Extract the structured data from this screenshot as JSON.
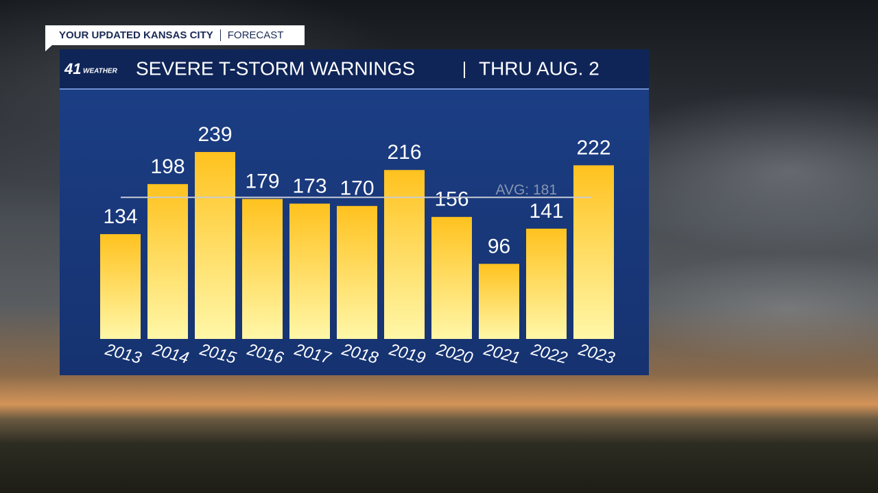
{
  "header": {
    "tag": "YOUR UPDATED KANSAS CITY",
    "section": "FORECAST"
  },
  "chart_data": {
    "type": "bar",
    "logo": {
      "number": "41",
      "word": "WEATHER"
    },
    "title": "SEVERE T-STORM WARNINGS",
    "subtitle": "THRU AUG. 2",
    "categories": [
      "2013",
      "2014",
      "2015",
      "2016",
      "2017",
      "2018",
      "2019",
      "2020",
      "2021",
      "2022",
      "2023"
    ],
    "values": [
      134,
      198,
      239,
      179,
      173,
      170,
      216,
      156,
      96,
      141,
      222
    ],
    "average": {
      "value": 181,
      "label": "AVG: 181"
    },
    "color": "#ffc21f"
  }
}
